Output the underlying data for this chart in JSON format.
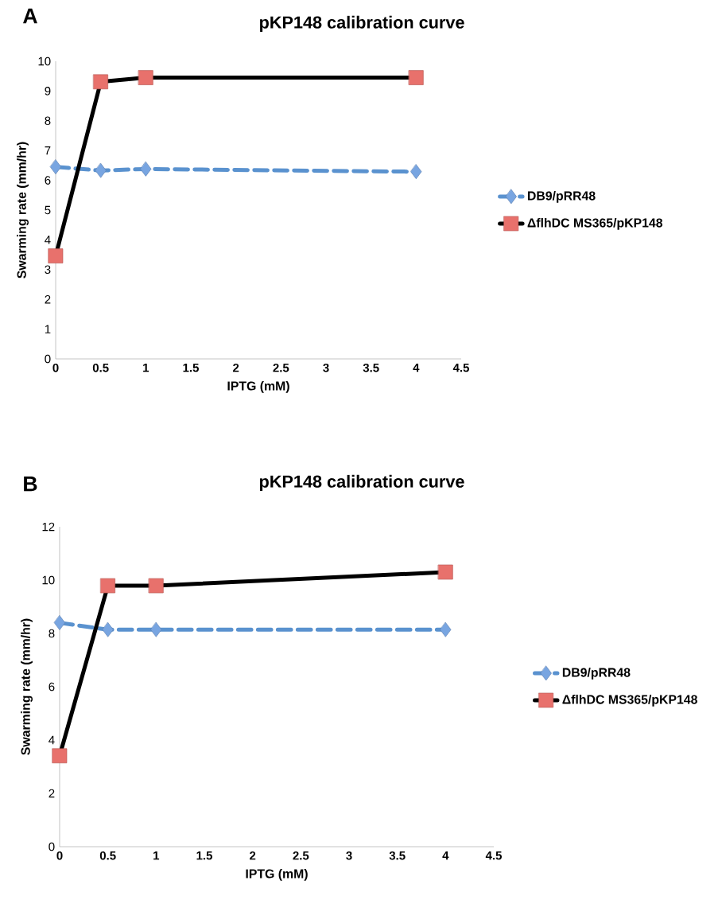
{
  "chart_data": [
    {
      "type": "line",
      "title": "pKP148 calibration curve",
      "xlabel": "IPTG (mM)",
      "ylabel": "Swarming rate  (mm/hr)",
      "annotations": [
        "A"
      ],
      "x": [
        0,
        0.5,
        1,
        4
      ],
      "series": [
        {
          "name": "DB9/pRR48",
          "color": "#5a92cf",
          "values": [
            6.45,
            6.33,
            6.38,
            6.29
          ],
          "marker": "diamond",
          "line_style": "dashed"
        },
        {
          "name": "ΔflhDC MS365/pKP148",
          "color": "#000000",
          "values": [
            3.46,
            9.31,
            9.45,
            9.45
          ],
          "marker": "square",
          "line_style": "solid"
        }
      ],
      "xlim": [
        0,
        4.5
      ],
      "xticks": [
        0,
        0.5,
        1,
        1.5,
        2,
        2.5,
        3,
        3.5,
        4,
        4.5
      ],
      "ylim": [
        0,
        10
      ],
      "yticks": [
        0,
        1,
        2,
        3,
        4,
        5,
        6,
        7,
        8,
        9,
        10
      ],
      "legend": "right"
    },
    {
      "type": "line",
      "title": "pKP148 calibration curve",
      "xlabel": "IPTG (mM)",
      "ylabel": "Swarming rate (mm/hr)",
      "annotations": [
        "B"
      ],
      "x": [
        0,
        0.5,
        1,
        4
      ],
      "series": [
        {
          "name": "DB9/pRR48",
          "color": "#5a92cf",
          "values": [
            8.4,
            8.14,
            8.14,
            8.14
          ],
          "marker": "diamond",
          "line_style": "dashed"
        },
        {
          "name": "ΔflhDC MS365/pKP148",
          "color": "#000000",
          "values": [
            3.41,
            9.79,
            9.79,
            10.3
          ],
          "marker": "square",
          "line_style": "solid"
        }
      ],
      "xlim": [
        0,
        4.5
      ],
      "xticks": [
        0,
        0.5,
        1,
        1.5,
        2,
        2.5,
        3,
        3.5,
        4,
        4.5
      ],
      "ylim": [
        0,
        12
      ],
      "yticks": [
        0,
        2,
        4,
        6,
        8,
        10,
        12
      ],
      "legend": "right"
    }
  ]
}
